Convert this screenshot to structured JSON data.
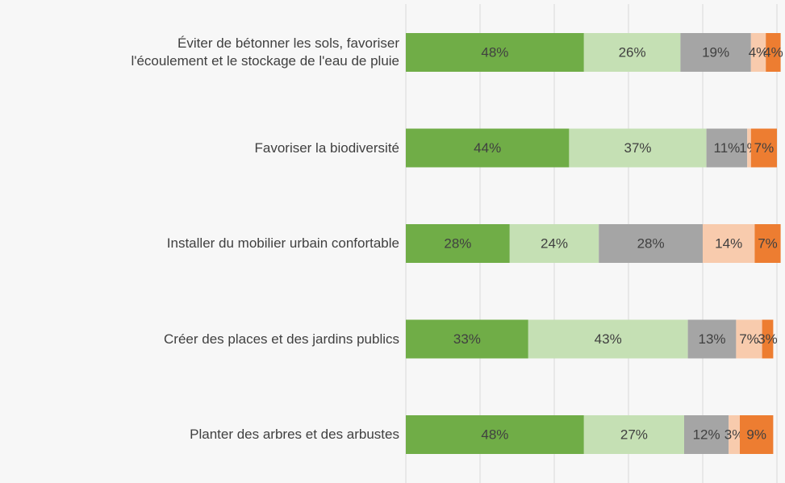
{
  "chart_data": {
    "type": "stacked-bar-horizontal",
    "categories": [
      "Éviter de bétonner les sols, favoriser\nl'écoulement et le stockage de l'eau de pluie",
      "Favoriser la biodiversité",
      "Installer du mobilier urbain confortable",
      "Créer des places et des jardins publics",
      "Planter des arbres et des arbustes"
    ],
    "series": [
      {
        "color": "#70ad47",
        "values": [
          48,
          44,
          28,
          33,
          48
        ],
        "value_labels": [
          "48%",
          "44%",
          "28%",
          "33%",
          "48%"
        ]
      },
      {
        "color": "#c5e0b4",
        "values": [
          26,
          37,
          24,
          43,
          27
        ],
        "value_labels": [
          "26%",
          "37%",
          "24%",
          "43%",
          "27%"
        ]
      },
      {
        "color": "#a5a5a5",
        "values": [
          19,
          11,
          28,
          13,
          12
        ],
        "value_labels": [
          "19%",
          "11%",
          "28%",
          "13%",
          "12%"
        ]
      },
      {
        "color": "#f8cbad",
        "values": [
          4,
          1,
          14,
          7,
          3
        ],
        "value_labels": [
          "4%",
          "1%",
          "14%",
          "7%",
          "3%"
        ]
      },
      {
        "color": "#ed7d31",
        "values": [
          4,
          7,
          7,
          3,
          9
        ],
        "value_labels": [
          "4%",
          "7%",
          "7%",
          "3%",
          "9%"
        ]
      }
    ],
    "xlim": [
      0,
      100
    ],
    "xticks": [
      0,
      20,
      40,
      60,
      80,
      100
    ],
    "grid": true
  }
}
